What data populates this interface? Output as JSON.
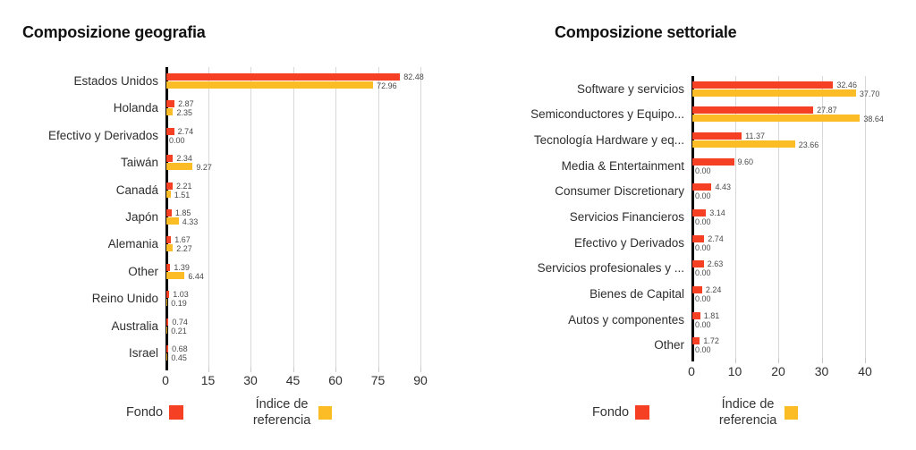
{
  "page": {
    "background": "#ffffff"
  },
  "colors": {
    "fondo": "#F54023",
    "indice": "#FBBC26",
    "grid": "#D8D8D8",
    "axis": "#000000",
    "category_text": "#2E2E2E",
    "value_text": "#4A4A4A",
    "title_text": "#111111"
  },
  "legend": {
    "fondo_label": "Fondo",
    "indice_label": "Índice de referencia"
  },
  "chart_data": [
    {
      "type": "bar",
      "orientation": "horizontal",
      "title": "Composizione geografia",
      "xlabel": "",
      "ylabel": "",
      "x_ticks": [
        0,
        15,
        30,
        45,
        60,
        75,
        90
      ],
      "xlim": [
        0,
        103
      ],
      "grid": true,
      "legend_position": "bottom",
      "categories": [
        "Estados Unidos",
        "Holanda",
        "Efectivo y Derivados",
        "Taiwán",
        "Canadá",
        "Japón",
        "Alemania",
        "Other",
        "Reino Unido",
        "Australia",
        "Israel"
      ],
      "series": [
        {
          "name": "Fondo",
          "values": [
            82.48,
            2.87,
            2.74,
            2.34,
            2.21,
            1.85,
            1.67,
            1.39,
            1.03,
            0.74,
            0.68
          ]
        },
        {
          "name": "Índice de referencia",
          "values": [
            72.96,
            2.35,
            0.0,
            9.27,
            1.51,
            4.33,
            2.27,
            6.44,
            0.19,
            0.21,
            0.45
          ]
        }
      ]
    },
    {
      "type": "bar",
      "orientation": "horizontal",
      "title": "Composizione settoriale",
      "xlabel": "",
      "ylabel": "",
      "x_ticks": [
        0,
        10,
        20,
        30,
        40
      ],
      "xlim": [
        0,
        51
      ],
      "grid": true,
      "legend_position": "bottom",
      "categories": [
        "Software y servicios",
        "Semiconductores y Equipo...",
        "Tecnología Hardware y eq...",
        "Media & Entertainment",
        "Consumer Discretionary",
        "Servicios Financieros",
        "Efectivo y Derivados",
        "Servicios profesionales y ...",
        "Bienes de Capital",
        "Autos y componentes",
        "Other"
      ],
      "series": [
        {
          "name": "Fondo",
          "values": [
            32.46,
            27.87,
            11.37,
            9.6,
            4.43,
            3.14,
            2.74,
            2.63,
            2.24,
            1.81,
            1.72
          ]
        },
        {
          "name": "Índice de referencia",
          "values": [
            37.7,
            38.64,
            23.66,
            0.0,
            0.0,
            0.0,
            0.0,
            0.0,
            0.0,
            0.0,
            0.0
          ]
        }
      ]
    }
  ]
}
